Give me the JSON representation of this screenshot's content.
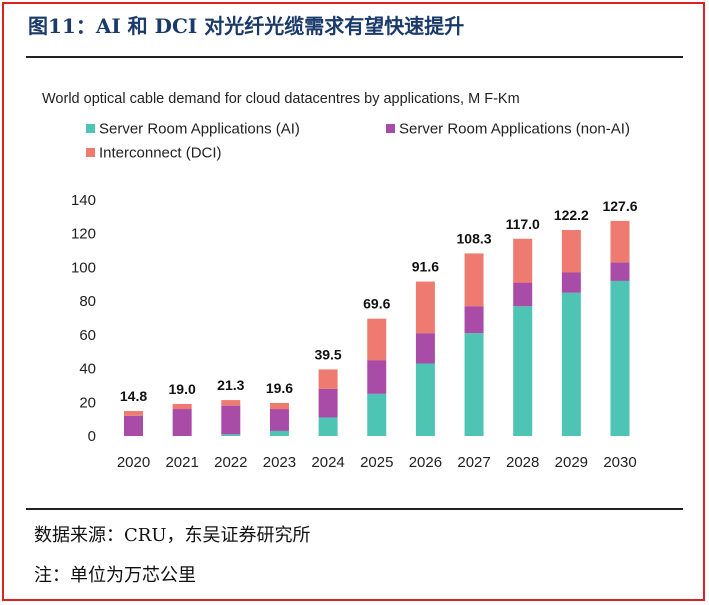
{
  "figure_title": "图11：AI 和 DCI 对光纤光缆需求有望快速提升",
  "source_line": "数据来源：CRU，东吴证券研究所",
  "note_line": "注：单位为万芯公里",
  "colors": {
    "ai": "#4dc4b4",
    "non_ai": "#a84ca8",
    "dci": "#ee7a70",
    "frame": "#e02020",
    "title": "#1a3a6a"
  },
  "chart_data": {
    "type": "bar",
    "stacked": true,
    "title": "World optical cable demand for cloud datacentres by applications, M F-Km",
    "legend_position": "top-left",
    "grid": false,
    "categories": [
      "2020",
      "2021",
      "2022",
      "2023",
      "2024",
      "2025",
      "2026",
      "2027",
      "2028",
      "2029",
      "2030"
    ],
    "series": [
      {
        "name": "Server Room Applications (AI)",
        "values": [
          0,
          0,
          1,
          3,
          11,
          25,
          43,
          61,
          77,
          85,
          92
        ]
      },
      {
        "name": "Server Room Applications (non-AI)",
        "values": [
          12,
          16,
          17,
          13,
          17,
          20,
          18,
          16,
          14,
          12,
          11
        ]
      },
      {
        "name": "Interconnect (DCI)",
        "values": [
          2.8,
          3,
          3.3,
          3.6,
          11.5,
          24.6,
          30.6,
          31.3,
          26,
          25.2,
          24.6
        ]
      }
    ],
    "totals": [
      "14.8",
      "19.0",
      "21.3",
      "19.6",
      "39.5",
      "69.6",
      "91.6",
      "108.3",
      "117.0",
      "122.2",
      "127.6"
    ],
    "totals_values": [
      14.8,
      19.0,
      21.3,
      19.6,
      39.5,
      69.6,
      91.6,
      108.3,
      117.0,
      122.2,
      127.6
    ],
    "ylim": [
      0,
      140
    ],
    "yticks": [
      "0",
      "20",
      "40",
      "60",
      "80",
      "100",
      "120",
      "140"
    ]
  }
}
